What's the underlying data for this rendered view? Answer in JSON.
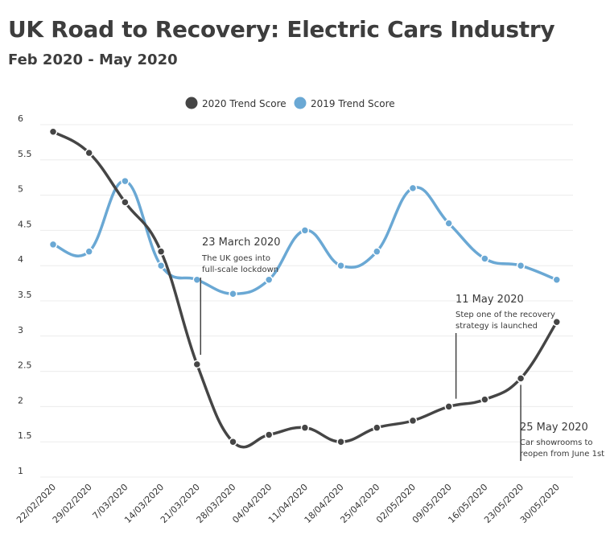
{
  "title": "UK Road to Recovery: Electric Cars Industry",
  "subtitle": "Feb 2020 - May 2020",
  "chart_data": {
    "type": "line",
    "categories": [
      "22/02/2020",
      "29/02/2020",
      "7/03/2020",
      "14/03/2020",
      "21/03/2020",
      "28/03/2020",
      "04/04/2020",
      "11/04/2020",
      "18/04/2020",
      "25/04/2020",
      "02/05/2020",
      "09/05/2020",
      "16/05/2020",
      "23/05/2020",
      "30/05/2020"
    ],
    "series": [
      {
        "name": "2020 Trend Score",
        "color": "#454545",
        "values": [
          5.9,
          5.6,
          4.9,
          4.2,
          2.6,
          1.5,
          1.6,
          1.7,
          1.5,
          1.7,
          1.8,
          2.0,
          2.1,
          2.4,
          3.2
        ]
      },
      {
        "name": "2019 Trend Score",
        "color": "#6aa8d4",
        "values": [
          4.3,
          4.2,
          5.2,
          4.0,
          3.8,
          3.6,
          3.8,
          4.5,
          4.0,
          4.2,
          5.1,
          4.6,
          4.1,
          4.0,
          3.8
        ]
      }
    ],
    "yticks": [
      "1",
      "1.5",
      "2",
      "2.5",
      "3",
      "3.5",
      "4",
      "4.5",
      "5",
      "5.5",
      "6"
    ],
    "ylim": [
      1,
      6
    ],
    "grid": true,
    "legend": "top-center",
    "annotations": [
      {
        "title": "23 March 2020",
        "lines": [
          "The UK goes into",
          "full-scale lockdown"
        ],
        "x_index": 4.1
      },
      {
        "title": "11 May 2020",
        "lines": [
          "Step one of the recovery",
          "strategy is launched"
        ],
        "x_index": 11.2
      },
      {
        "title": "25 May 2020",
        "lines": [
          "Car showrooms to",
          "reopen from June 1st"
        ],
        "x_index": 13.0
      }
    ]
  }
}
